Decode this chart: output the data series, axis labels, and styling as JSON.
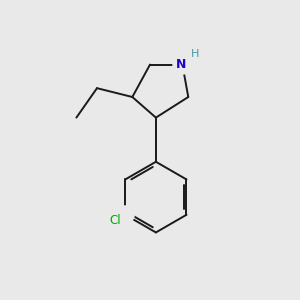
{
  "bg_color": "#e9e9e9",
  "bond_color": "#1a1a1a",
  "bond_lw": 1.4,
  "N_color": "#2200cc",
  "H_color": "#4499aa",
  "Cl_color": "#00aa00",
  "figsize": [
    3.0,
    3.0
  ],
  "dpi": 100,
  "xlim": [
    0,
    10
  ],
  "ylim": [
    0,
    10
  ]
}
